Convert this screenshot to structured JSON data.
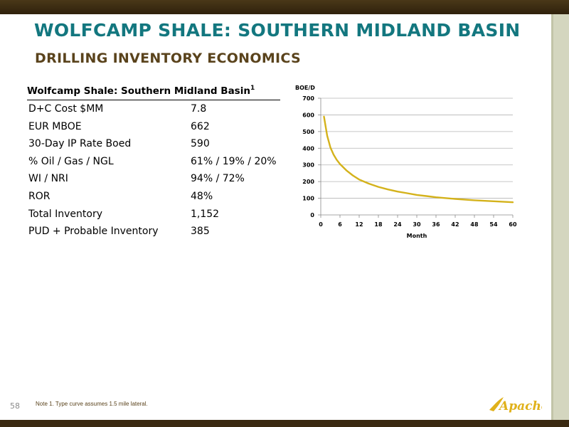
{
  "slide": {
    "title": "WOLFCAMP SHALE: SOUTHERN MIDLAND BASIN",
    "subtitle": "DRILLING INVENTORY ECONOMICS",
    "page_number": "58",
    "footnote": "Note 1. Type curve assumes 1.5 mile lateral.",
    "logo_text": "Apache"
  },
  "table": {
    "header": "Wolfcamp Shale: Southern Midland Basin",
    "header_sup": "1",
    "rows": [
      {
        "label": "D+C Cost $MM",
        "value": "7.8"
      },
      {
        "label": "EUR MBOE",
        "value": "662"
      },
      {
        "label": "30-Day IP Rate Boed",
        "value": "590"
      },
      {
        "label": "% Oil / Gas / NGL",
        "value": "61% / 19% / 20%"
      },
      {
        "label": "WI / NRI",
        "value": "94% / 72%"
      },
      {
        "label": "ROR",
        "value": "48%"
      },
      {
        "label": "Total Inventory",
        "value": "1,152"
      },
      {
        "label": "PUD + Probable Inventory",
        "value": "385"
      }
    ]
  },
  "colors": {
    "title": "#13777f",
    "subtitle": "#5a431c",
    "curve": "#d4b21b",
    "grid": "#b5b5b5",
    "bars": "#3b2a12",
    "logo": "#e0b11a"
  },
  "chart_data": {
    "type": "line",
    "title": "",
    "xlabel": "Month",
    "ylabel": "BOE/D",
    "xlim": [
      0,
      60
    ],
    "ylim": [
      0,
      700
    ],
    "x_ticks": [
      0,
      6,
      12,
      18,
      24,
      30,
      36,
      42,
      48,
      54,
      60
    ],
    "y_ticks": [
      0,
      100,
      200,
      300,
      400,
      500,
      600,
      700
    ],
    "grid": "horizontal",
    "legend": "none",
    "series": [
      {
        "x": [
          1,
          2,
          3,
          4,
          5,
          6,
          8,
          10,
          12,
          15,
          18,
          21,
          24,
          27,
          30,
          33,
          36,
          42,
          48,
          54,
          60
        ],
        "y": [
          590,
          475,
          405,
          362,
          330,
          305,
          267,
          237,
          212,
          188,
          168,
          153,
          140,
          130,
          120,
          113,
          106,
          96,
          88,
          82,
          76
        ]
      }
    ]
  }
}
